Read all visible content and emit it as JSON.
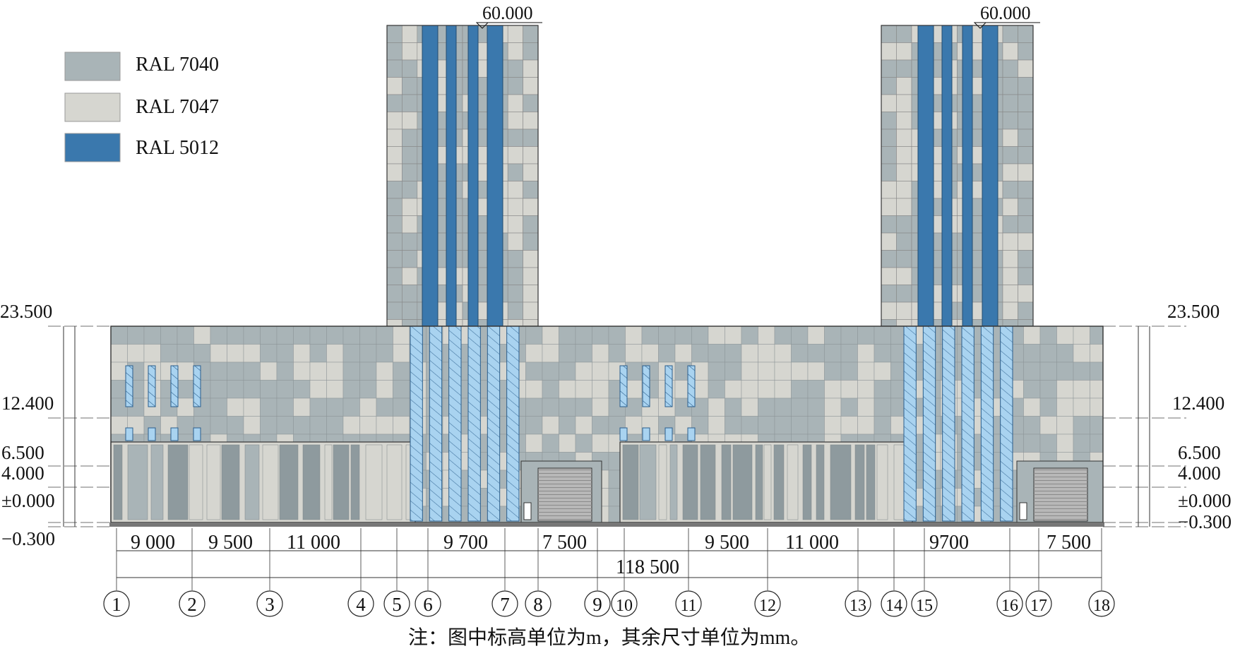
{
  "legend": [
    {
      "code": "RAL 7040",
      "color": "#a9b4b7"
    },
    {
      "code": "RAL 7047",
      "color": "#d6d6d0"
    },
    {
      "code": "RAL 5012",
      "color": "#3a78ad"
    }
  ],
  "colors": {
    "glass": "#a9d3f0",
    "glass_hatch": "#2a5e8c",
    "line": "#333333",
    "door": "#b8b8b8",
    "ground": "#777777"
  },
  "elevations": {
    "top_tower": "60.000",
    "roof": "23.500",
    "level_12": "12.400",
    "level_6": "6.500",
    "level_4": "4.000",
    "ground_left": "±0.000",
    "ground_right": "±0.000",
    "below_grade": "−0.300",
    "below_grade_right": "−0.300"
  },
  "dimensions": {
    "left_bays": [
      "9 000",
      "9 500",
      "11 000"
    ],
    "mid_left": [
      "9 700",
      "7 500"
    ],
    "total": "118 500",
    "mid_right": [
      "9 500",
      "11 000"
    ],
    "right_bays": [
      "9700",
      "7 500"
    ]
  },
  "axes": [
    "1",
    "2",
    "3",
    "4",
    "5",
    "6",
    "7",
    "8",
    "9",
    "10",
    "11",
    "12",
    "13",
    "14",
    "15",
    "16",
    "17",
    "18"
  ],
  "note": "注：图中标高单位为m，其余尺寸单位为mm。"
}
